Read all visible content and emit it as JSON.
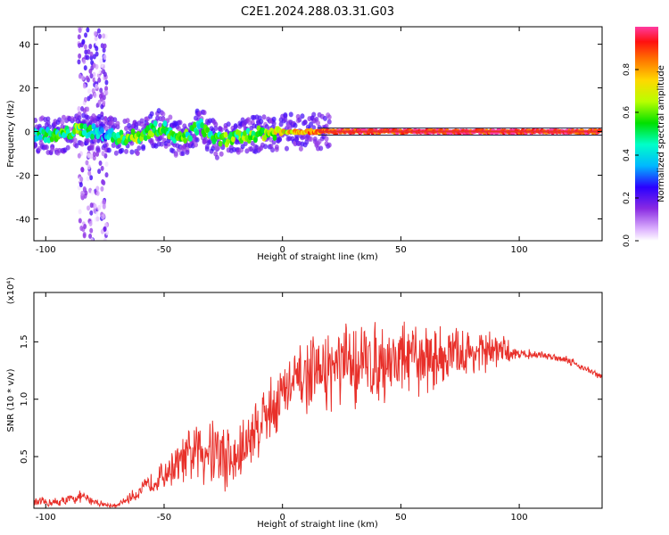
{
  "title": "C2E1.2024.288.03.31.G03",
  "colors": {
    "snr_line": "#e8302a",
    "axis": "#000000",
    "track": "#e8302a"
  },
  "colorbar": {
    "label": "Normalized spectral amplitude",
    "ticks": [
      "0.0",
      "0.2",
      "0.4",
      "0.6",
      "0.8"
    ],
    "tick_values": [
      0.0,
      0.2,
      0.4,
      0.6,
      0.8
    ],
    "range": [
      0,
      1
    ]
  },
  "chart_data": [
    {
      "type": "heatmap",
      "title": "C2E1.2024.288.03.31.G03",
      "xlabel": "Height of straight line (km)",
      "ylabel": "Frequency (Hz)",
      "xlim": [
        -105,
        135
      ],
      "ylim": [
        -50,
        48
      ],
      "xticks": [
        "-100",
        "-50",
        "0",
        "50",
        "100"
      ],
      "xtick_values": [
        -100,
        -50,
        0,
        50,
        100
      ],
      "yticks": [
        "40",
        "20",
        "0",
        "-20",
        "-40"
      ],
      "ytick_values": [
        40,
        20,
        0,
        -20,
        -40
      ],
      "ridge": [
        {
          "x": -105,
          "f": -1,
          "a": 0.45
        },
        {
          "x": -95,
          "f": -2,
          "a": 0.5
        },
        {
          "x": -85,
          "f": 1,
          "a": 0.55
        },
        {
          "x": -75,
          "f": -1,
          "a": 0.35
        },
        {
          "x": -68,
          "f": -3,
          "a": 0.55
        },
        {
          "x": -60,
          "f": -2,
          "a": 0.6
        },
        {
          "x": -55,
          "f": 1,
          "a": 0.55
        },
        {
          "x": -50,
          "f": 2,
          "a": 0.5
        },
        {
          "x": -45,
          "f": -4,
          "a": 0.55
        },
        {
          "x": -40,
          "f": -2,
          "a": 0.5
        },
        {
          "x": -35,
          "f": 3,
          "a": 0.45
        },
        {
          "x": -28,
          "f": -4,
          "a": 0.55
        },
        {
          "x": -20,
          "f": -3,
          "a": 0.55
        },
        {
          "x": -10,
          "f": -1,
          "a": 0.6
        },
        {
          "x": 0,
          "f": 0,
          "a": 0.7
        },
        {
          "x": 10,
          "f": 0,
          "a": 0.8
        },
        {
          "x": 20,
          "f": 0,
          "a": 0.9
        },
        {
          "x": 40,
          "f": 0,
          "a": 0.95
        },
        {
          "x": 60,
          "f": 0,
          "a": 0.95
        },
        {
          "x": 80,
          "f": 0,
          "a": 0.95
        },
        {
          "x": 100,
          "f": 0,
          "a": 0.95
        },
        {
          "x": 120,
          "f": 0,
          "a": 0.95
        },
        {
          "x": 134,
          "f": 0,
          "a": 0.95
        }
      ],
      "vertical_streak": {
        "x": -80,
        "f_range": [
          -50,
          48
        ],
        "a": 0.15
      }
    },
    {
      "type": "line",
      "xlabel": "Height of straight line (km)",
      "ylabel": "SNR (10 * v/v)",
      "scale_label": "(x10⁴)",
      "xlim": [
        -105,
        135
      ],
      "ylim": [
        0.05,
        1.93
      ],
      "xticks": [
        "-100",
        "-50",
        "0",
        "50",
        "100"
      ],
      "xtick_values": [
        -100,
        -50,
        0,
        50,
        100
      ],
      "yticks": [
        "1.5",
        "1.0",
        "0.5"
      ],
      "ytick_values": [
        1.5,
        1.0,
        0.5
      ],
      "series": [
        {
          "name": "SNR",
          "envelope_x": [
            -105,
            -95,
            -85,
            -75,
            -70,
            -60,
            -50,
            -40,
            -30,
            -25,
            -20,
            -10,
            0,
            10,
            20,
            30,
            40,
            50,
            60,
            70,
            80,
            90,
            100,
            110,
            120,
            134
          ],
          "mean": [
            0.1,
            0.1,
            0.15,
            0.08,
            0.07,
            0.2,
            0.35,
            0.5,
            0.6,
            0.5,
            0.45,
            0.8,
            1.05,
            1.2,
            1.25,
            1.3,
            1.32,
            1.35,
            1.35,
            1.38,
            1.4,
            1.42,
            1.4,
            1.38,
            1.35,
            1.2
          ],
          "spread": [
            0.05,
            0.05,
            0.06,
            0.03,
            0.02,
            0.08,
            0.15,
            0.25,
            0.45,
            0.4,
            0.35,
            0.35,
            0.35,
            0.35,
            0.4,
            0.45,
            0.4,
            0.4,
            0.35,
            0.3,
            0.25,
            0.2,
            0.05,
            0.04,
            0.04,
            0.04
          ]
        }
      ]
    }
  ]
}
